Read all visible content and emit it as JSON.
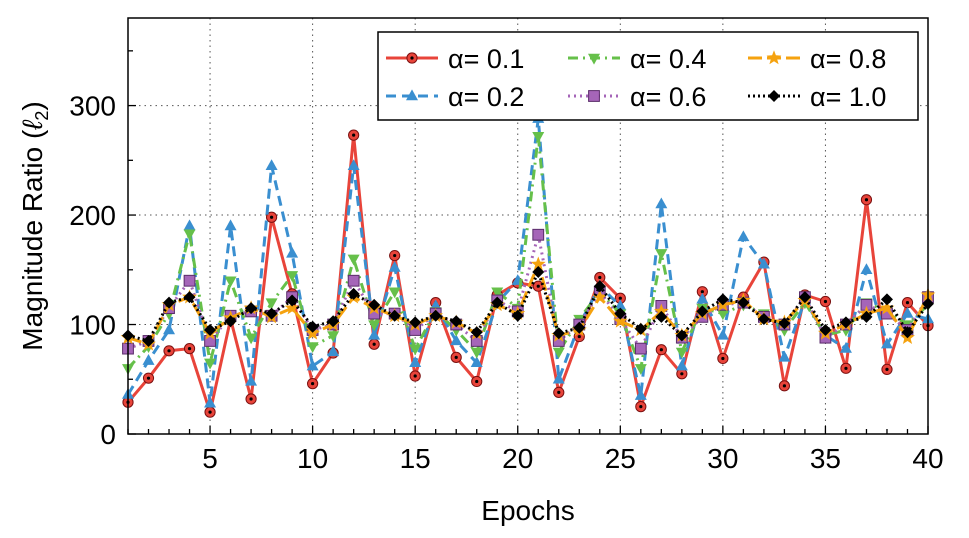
{
  "chart_data": {
    "type": "line",
    "title": "",
    "xlabel": "Epochs",
    "ylabel_main": "Magnitude Ratio (",
    "ylabel_symbol": "ℓ",
    "ylabel_sub": "2",
    "ylabel_close": ")",
    "xlim": [
      1,
      40
    ],
    "ylim": [
      0,
      380
    ],
    "x_ticks": [
      5,
      10,
      15,
      20,
      25,
      30,
      35,
      40
    ],
    "x_tick_labels": [
      "5",
      "10",
      "15",
      "20",
      "25",
      "30",
      "35",
      "40"
    ],
    "y_ticks": [
      0,
      100,
      200,
      300
    ],
    "y_tick_labels": [
      "0",
      "100",
      "200",
      "300"
    ],
    "grid": true,
    "legend_position": "top-right",
    "x": [
      1,
      2,
      3,
      4,
      5,
      6,
      7,
      8,
      9,
      10,
      11,
      12,
      13,
      14,
      15,
      16,
      17,
      18,
      19,
      20,
      21,
      22,
      23,
      24,
      25,
      26,
      27,
      28,
      29,
      30,
      31,
      32,
      33,
      34,
      35,
      36,
      37,
      38,
      39,
      40
    ],
    "series": [
      {
        "name": "α= 0.1",
        "color": "#e8443a",
        "linestyle": "solid",
        "marker": "circle",
        "values": [
          29,
          51,
          76,
          78,
          20,
          105,
          32,
          198,
          128,
          46,
          74,
          273,
          82,
          163,
          53,
          120,
          70,
          48,
          127,
          138,
          135,
          38,
          89,
          143,
          124,
          25,
          77,
          55,
          130,
          69,
          125,
          157,
          44,
          127,
          121,
          60,
          214,
          59,
          120,
          99
        ]
      },
      {
        "name": "α= 0.2",
        "color": "#3a8fd0",
        "linestyle": "dashed",
        "marker": "triangle-up",
        "values": [
          36,
          67,
          95,
          190,
          28,
          190,
          48,
          245,
          165,
          62,
          75,
          245,
          90,
          152,
          65,
          117,
          85,
          65,
          120,
          140,
          288,
          50,
          100,
          135,
          117,
          35,
          210,
          62,
          123,
          90,
          180,
          155,
          70,
          122,
          90,
          78,
          150,
          82,
          110,
          105
        ]
      },
      {
        "name": "α= 0.4",
        "color": "#66c04a",
        "linestyle": "dashdot",
        "marker": "triangle-down",
        "values": [
          60,
          80,
          110,
          183,
          65,
          140,
          88,
          120,
          145,
          80,
          90,
          160,
          100,
          130,
          78,
          112,
          95,
          75,
          130,
          115,
          272,
          75,
          105,
          130,
          110,
          60,
          165,
          75,
          115,
          110,
          118,
          110,
          95,
          120,
          90,
          95,
          120,
          112,
          100,
          118
        ]
      },
      {
        "name": "α= 0.6",
        "color": "#a565b8",
        "linestyle": "dotted",
        "marker": "square",
        "values": [
          78,
          85,
          115,
          140,
          85,
          108,
          112,
          108,
          125,
          95,
          100,
          140,
          110,
          110,
          95,
          110,
          100,
          85,
          122,
          112,
          182,
          85,
          100,
          130,
          105,
          78,
          117,
          88,
          107,
          118,
          120,
          107,
          100,
          125,
          88,
          100,
          118,
          110,
          95,
          125
        ]
      },
      {
        "name": "α= 0.8",
        "color": "#f5a20f",
        "linestyle": "longdash",
        "marker": "star",
        "values": [
          88,
          82,
          118,
          125,
          92,
          106,
          115,
          107,
          115,
          92,
          100,
          125,
          115,
          108,
          100,
          108,
          102,
          92,
          118,
          110,
          155,
          90,
          95,
          125,
          103,
          95,
          112,
          90,
          110,
          118,
          122,
          105,
          102,
          122,
          92,
          100,
          110,
          115,
          88,
          127
        ]
      },
      {
        "name": "α= 1.0",
        "color": "#000000",
        "linestyle": "dashdot-dotted",
        "marker": "diamond",
        "values": [
          90,
          85,
          120,
          125,
          95,
          103,
          115,
          110,
          122,
          98,
          103,
          128,
          118,
          108,
          102,
          108,
          103,
          93,
          120,
          108,
          148,
          92,
          97,
          135,
          110,
          96,
          107,
          90,
          112,
          123,
          120,
          105,
          101,
          125,
          95,
          102,
          107,
          123,
          93,
          119
        ]
      }
    ]
  }
}
